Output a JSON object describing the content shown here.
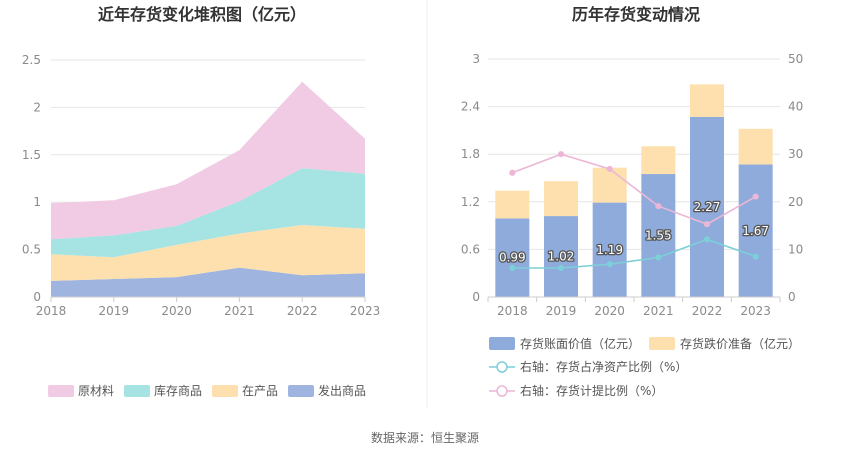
{
  "source": "数据来源：恒生聚源",
  "chart_data": [
    {
      "type": "area",
      "stacked": true,
      "title": "近年存货变化堆积图（亿元）",
      "categories": [
        "2018",
        "2019",
        "2020",
        "2021",
        "2022",
        "2023"
      ],
      "ylim": [
        0,
        2.5
      ],
      "yticks": [
        "0",
        "0.5",
        "1",
        "1.5",
        "2",
        "2.5"
      ],
      "grid": true,
      "legend_position": "bottom",
      "series": [
        {
          "name": "发出商品",
          "color": "#9fb5e0",
          "values": [
            0.17,
            0.19,
            0.21,
            0.31,
            0.23,
            0.25
          ]
        },
        {
          "name": "在产品",
          "color": "#fde0ae",
          "values": [
            0.28,
            0.23,
            0.34,
            0.36,
            0.53,
            0.47
          ]
        },
        {
          "name": "库存商品",
          "color": "#a6e3e3",
          "values": [
            0.16,
            0.23,
            0.2,
            0.34,
            0.6,
            0.58
          ]
        },
        {
          "name": "原材料",
          "color": "#f1cae3",
          "values": [
            0.38,
            0.37,
            0.44,
            0.54,
            0.91,
            0.37
          ]
        }
      ],
      "legend_order": [
        "原材料",
        "库存商品",
        "在产品",
        "发出商品"
      ]
    },
    {
      "type": "bar",
      "stacked": true,
      "title": "历年存货变动情况",
      "categories": [
        "2018",
        "2019",
        "2020",
        "2021",
        "2022",
        "2023"
      ],
      "ylim": [
        0,
        3
      ],
      "yticks": [
        "0",
        "0.6",
        "1.2",
        "1.8",
        "2.4",
        "3"
      ],
      "y2lim": [
        0,
        50
      ],
      "y2ticks": [
        "0",
        "10",
        "20",
        "30",
        "40",
        "50"
      ],
      "grid": true,
      "legend_position": "bottom",
      "bars": [
        {
          "name": "存货账面价值（亿元）",
          "color": "#8eabdb",
          "values": [
            0.99,
            1.02,
            1.19,
            1.55,
            2.27,
            1.67
          ],
          "labels": [
            "0.99",
            "1.02",
            "1.19",
            "1.55",
            "2.27",
            "1.67"
          ]
        },
        {
          "name": "存货跌价准备（亿元）",
          "color": "#fde0ae",
          "values": [
            0.35,
            0.44,
            0.44,
            0.35,
            0.41,
            0.45
          ]
        }
      ],
      "lines": [
        {
          "name": "右轴：存货占净资产比例（%）",
          "color": "#7dcfd8",
          "axis": "right",
          "values": [
            6.1,
            6.1,
            6.9,
            8.3,
            12.1,
            8.5
          ]
        },
        {
          "name": "右轴：存货计提比例（%）",
          "color": "#ecb7d6",
          "axis": "right",
          "values": [
            26.1,
            30.0,
            26.9,
            19.1,
            15.3,
            21.1
          ]
        }
      ]
    }
  ]
}
